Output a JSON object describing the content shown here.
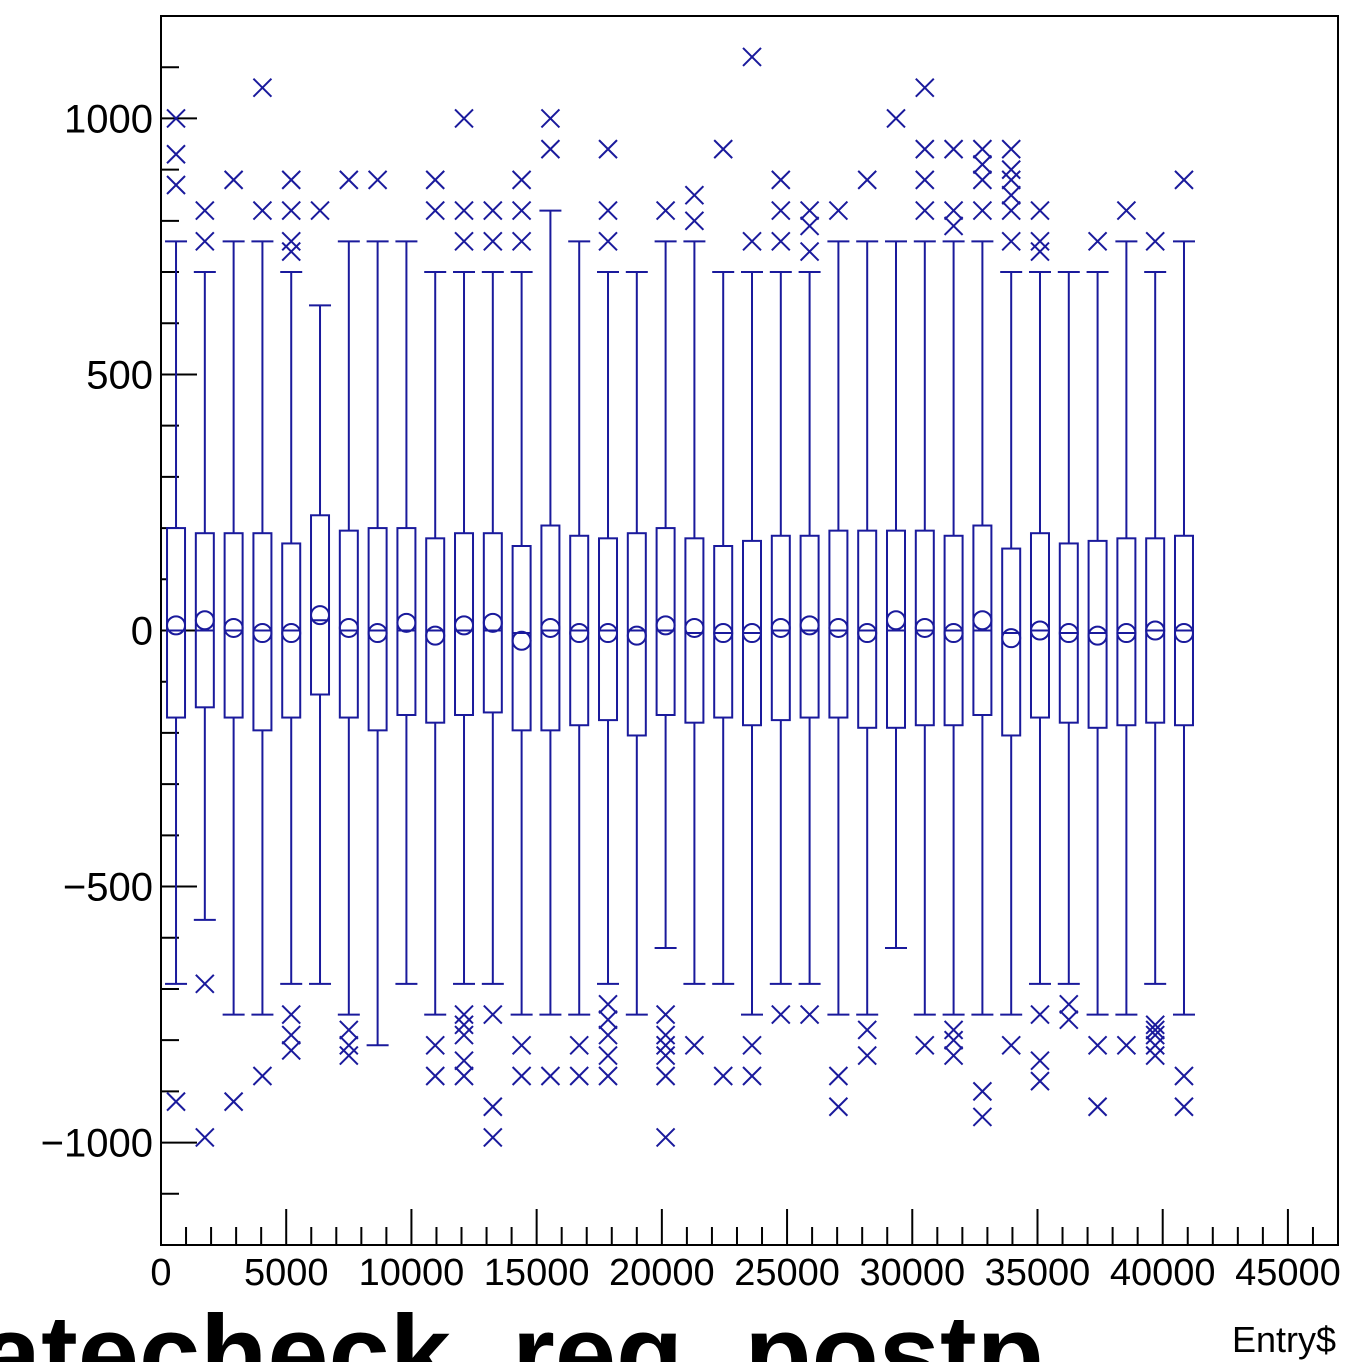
{
  "chart_data": {
    "type": "box",
    "title": "",
    "xlabel": "Entry$",
    "ylabel": "",
    "xlim": [
      0,
      47000
    ],
    "ylim": [
      -1200,
      1200
    ],
    "x_ticks": [
      0,
      5000,
      10000,
      15000,
      20000,
      25000,
      30000,
      35000,
      40000,
      45000
    ],
    "x_tick_labels": [
      "0",
      "5000",
      "10000",
      "15000",
      "20000",
      "25000",
      "30000",
      "35000",
      "40000",
      "45000"
    ],
    "y_ticks": [
      -1000,
      -500,
      0,
      500,
      1000
    ],
    "y_tick_labels": [
      "−1000",
      "−500",
      "0",
      "500",
      "1000"
    ],
    "grid": false,
    "color": "#1a1a9c",
    "boxes": [
      {
        "x": 600,
        "q1": -170,
        "median": 0,
        "q3": 200,
        "whislo": -690,
        "whishi": 760,
        "mean": 10,
        "outliers": [
          1000,
          930,
          870,
          -920
        ]
      },
      {
        "x": 1750,
        "q1": -150,
        "median": 0,
        "q3": 190,
        "whislo": -565,
        "whishi": 700,
        "mean": 20,
        "outliers": [
          820,
          760,
          -690,
          -990
        ]
      },
      {
        "x": 2900,
        "q1": -170,
        "median": 0,
        "q3": 190,
        "whislo": -750,
        "whishi": 760,
        "mean": 5,
        "outliers": [
          880,
          -920
        ]
      },
      {
        "x": 4050,
        "q1": -195,
        "median": 0,
        "q3": 190,
        "whislo": -750,
        "whishi": 760,
        "mean": -5,
        "outliers": [
          1060,
          820,
          -870
        ]
      },
      {
        "x": 5200,
        "q1": -170,
        "median": 0,
        "q3": 170,
        "whislo": -690,
        "whishi": 700,
        "mean": -5,
        "outliers": [
          880,
          820,
          760,
          740,
          -750,
          -790,
          -820
        ]
      },
      {
        "x": 6350,
        "q1": -125,
        "median": 20,
        "q3": 225,
        "whislo": -690,
        "whishi": 635,
        "mean": 30,
        "outliers": [
          820
        ]
      },
      {
        "x": 7500,
        "q1": -170,
        "median": 0,
        "q3": 195,
        "whislo": -750,
        "whishi": 760,
        "mean": 5,
        "outliers": [
          880,
          -780,
          -810,
          -830
        ]
      },
      {
        "x": 8650,
        "q1": -195,
        "median": 0,
        "q3": 200,
        "whislo": -810,
        "whishi": 760,
        "mean": -5,
        "outliers": [
          880
        ]
      },
      {
        "x": 9800,
        "q1": -165,
        "median": 0,
        "q3": 200,
        "whislo": -690,
        "whishi": 760,
        "mean": 15,
        "outliers": []
      },
      {
        "x": 10950,
        "q1": -180,
        "median": 0,
        "q3": 180,
        "whislo": -750,
        "whishi": 700,
        "mean": -10,
        "outliers": [
          880,
          820,
          -810,
          -870
        ]
      },
      {
        "x": 12100,
        "q1": -165,
        "median": 0,
        "q3": 190,
        "whislo": -690,
        "whishi": 700,
        "mean": 10,
        "outliers": [
          1000,
          820,
          760,
          -750,
          -770,
          -790,
          -840,
          -870
        ]
      },
      {
        "x": 13250,
        "q1": -160,
        "median": 0,
        "q3": 190,
        "whislo": -690,
        "whishi": 700,
        "mean": 15,
        "outliers": [
          820,
          760,
          -750,
          -930,
          -990
        ]
      },
      {
        "x": 14400,
        "q1": -195,
        "median": -5,
        "q3": 165,
        "whislo": -750,
        "whishi": 700,
        "mean": -20,
        "outliers": [
          880,
          820,
          760,
          -810,
          -870
        ]
      },
      {
        "x": 15550,
        "q1": -195,
        "median": 0,
        "q3": 205,
        "whislo": -750,
        "whishi": 820,
        "mean": 5,
        "outliers": [
          1000,
          940,
          -870
        ]
      },
      {
        "x": 16700,
        "q1": -185,
        "median": 0,
        "q3": 185,
        "whislo": -750,
        "whishi": 760,
        "mean": -5,
        "outliers": [
          -810,
          -870
        ]
      },
      {
        "x": 17850,
        "q1": -175,
        "median": 0,
        "q3": 180,
        "whislo": -690,
        "whishi": 700,
        "mean": -5,
        "outliers": [
          940,
          820,
          760,
          -730,
          -760,
          -790,
          -830,
          -870
        ]
      },
      {
        "x": 19000,
        "q1": -205,
        "median": 0,
        "q3": 190,
        "whislo": -750,
        "whishi": 700,
        "mean": -10,
        "outliers": []
      },
      {
        "x": 20150,
        "q1": -165,
        "median": 0,
        "q3": 200,
        "whislo": -620,
        "whishi": 760,
        "mean": 10,
        "outliers": [
          820,
          -750,
          -790,
          -810,
          -830,
          -870,
          -990
        ]
      },
      {
        "x": 21300,
        "q1": -180,
        "median": -5,
        "q3": 180,
        "whislo": -690,
        "whishi": 760,
        "mean": 5,
        "outliers": [
          850,
          800,
          -810
        ]
      },
      {
        "x": 22450,
        "q1": -170,
        "median": -5,
        "q3": 165,
        "whislo": -690,
        "whishi": 700,
        "mean": -5,
        "outliers": [
          940,
          -870
        ]
      },
      {
        "x": 23600,
        "q1": -185,
        "median": -5,
        "q3": 175,
        "whislo": -750,
        "whishi": 700,
        "mean": -5,
        "outliers": [
          1120,
          760,
          -810,
          -870
        ]
      },
      {
        "x": 24750,
        "q1": -175,
        "median": 0,
        "q3": 185,
        "whislo": -690,
        "whishi": 700,
        "mean": 5,
        "outliers": [
          880,
          820,
          760,
          -750
        ]
      },
      {
        "x": 25900,
        "q1": -170,
        "median": 0,
        "q3": 185,
        "whislo": -690,
        "whishi": 700,
        "mean": 10,
        "outliers": [
          820,
          790,
          740,
          -750
        ]
      },
      {
        "x": 27050,
        "q1": -170,
        "median": 0,
        "q3": 195,
        "whislo": -750,
        "whishi": 760,
        "mean": 5,
        "outliers": [
          820,
          -870,
          -930
        ]
      },
      {
        "x": 28200,
        "q1": -190,
        "median": 0,
        "q3": 195,
        "whislo": -750,
        "whishi": 760,
        "mean": -5,
        "outliers": [
          880,
          -780,
          -830
        ]
      },
      {
        "x": 29350,
        "q1": -190,
        "median": 0,
        "q3": 195,
        "whislo": -620,
        "whishi": 760,
        "mean": 20,
        "outliers": [
          1000
        ]
      },
      {
        "x": 30500,
        "q1": -185,
        "median": 0,
        "q3": 195,
        "whislo": -750,
        "whishi": 760,
        "mean": 5,
        "outliers": [
          1060,
          940,
          880,
          820,
          -810
        ]
      },
      {
        "x": 31650,
        "q1": -185,
        "median": 0,
        "q3": 185,
        "whislo": -750,
        "whishi": 760,
        "mean": -5,
        "outliers": [
          940,
          820,
          790,
          -780,
          -800,
          -830
        ]
      },
      {
        "x": 32800,
        "q1": -165,
        "median": 0,
        "q3": 205,
        "whislo": -750,
        "whishi": 760,
        "mean": 20,
        "outliers": [
          940,
          910,
          880,
          820,
          -900,
          -950
        ]
      },
      {
        "x": 33950,
        "q1": -205,
        "median": -5,
        "q3": 160,
        "whislo": -750,
        "whishi": 700,
        "mean": -15,
        "outliers": [
          940,
          900,
          880,
          850,
          820,
          760,
          -810
        ]
      },
      {
        "x": 35100,
        "q1": -170,
        "median": 0,
        "q3": 190,
        "whislo": -690,
        "whishi": 700,
        "mean": 0,
        "outliers": [
          820,
          760,
          740,
          -750,
          -840,
          -880
        ]
      },
      {
        "x": 36250,
        "q1": -180,
        "median": -5,
        "q3": 170,
        "whislo": -690,
        "whishi": 700,
        "mean": -5,
        "outliers": [
          -730,
          -760
        ]
      },
      {
        "x": 37400,
        "q1": -190,
        "median": -5,
        "q3": 175,
        "whislo": -750,
        "whishi": 700,
        "mean": -10,
        "outliers": [
          760,
          -810,
          -930
        ]
      },
      {
        "x": 38550,
        "q1": -185,
        "median": -5,
        "q3": 180,
        "whislo": -750,
        "whishi": 760,
        "mean": -5,
        "outliers": [
          820,
          -810
        ]
      },
      {
        "x": 39700,
        "q1": -180,
        "median": 0,
        "q3": 180,
        "whislo": -690,
        "whishi": 700,
        "mean": 0,
        "outliers": [
          760,
          -770,
          -780,
          -790,
          -810,
          -830
        ]
      },
      {
        "x": 40850,
        "q1": -185,
        "median": 0,
        "q3": 185,
        "whislo": -750,
        "whishi": 760,
        "mean": -5,
        "outliers": [
          880,
          -870,
          -930
        ]
      }
    ]
  },
  "overlay_text": {
    "big_title": "atecheck_reg_postp"
  }
}
